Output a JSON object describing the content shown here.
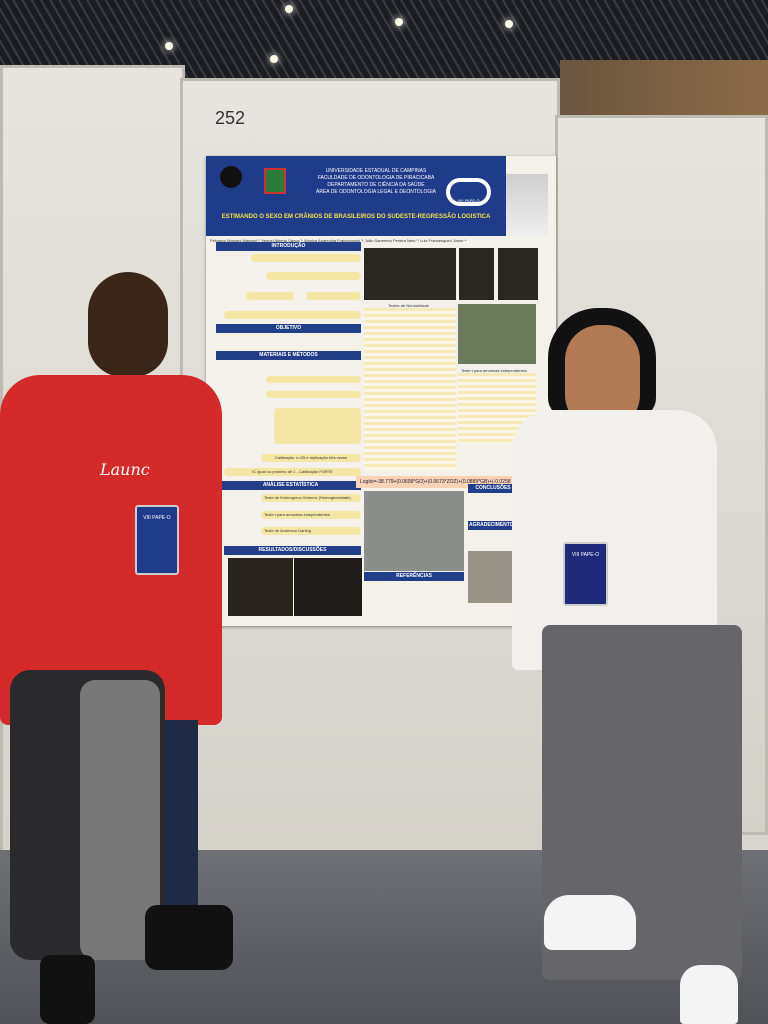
{
  "booth_number": "252",
  "poster": {
    "header_lines": [
      "UNIVERSIDADE ESTADUAL DE CAMPINAS",
      "FACULDADE DE ODONTOLOGIA DE PIRACICABA",
      "DEPARTAMENTO DE CIÊNCIA DA SAÚDE",
      "ÁREA DE ODONTOLOGIA LEGAL E DEONTOLOGIA"
    ],
    "event_logo": "VIII PAPE-O",
    "title": "ESTIMANDO O SEXO EM CRÂNIOS DE BRASILEIROS DO SUDESTE-REGRESSÃO LOGISTICA",
    "authors": "Feliciano Mamani Mamani ¹; Venuel Alberto Sanca ²; Monica Aparecida Francesquini ³; João Sarmento Pereira Neto ³; Luiz Francesquini Júnior ⁴",
    "sections": {
      "intro": "INTRODUÇÃO",
      "objective": "OBJETIVO",
      "methods": "MATERIAIS E MÉTODOS",
      "stats": "ANÁLISE ESTATÍSTICA",
      "results": "RESULTADOS/DISCUSSÕES",
      "references": "REFERÊNCIAS",
      "conclusions": "CONCLUSÕES",
      "acknowledgements": "AGRADECIMENTOS"
    },
    "table_titles": [
      "Testes de Normalidade",
      "Teste t para amostras independentes"
    ],
    "stats_items": [
      "Teste de Kolmogorov-Smirnov (Homogeneidade)",
      "Teste t para amostras independentes",
      "Teste de Anderson Darling"
    ],
    "calibration": "Calibração: n=25 e replicação três vezes",
    "kappa": "IC igual ou próximo de 1 - Calibração FORTE",
    "logito": "Logito=-38.779+(0.0699*GO)+(0.0673*ZOZ)+(0.0889*GB)+(-0.0258"
  },
  "badge_text": "VIII PAPE-O",
  "shirt_text": "Launc"
}
